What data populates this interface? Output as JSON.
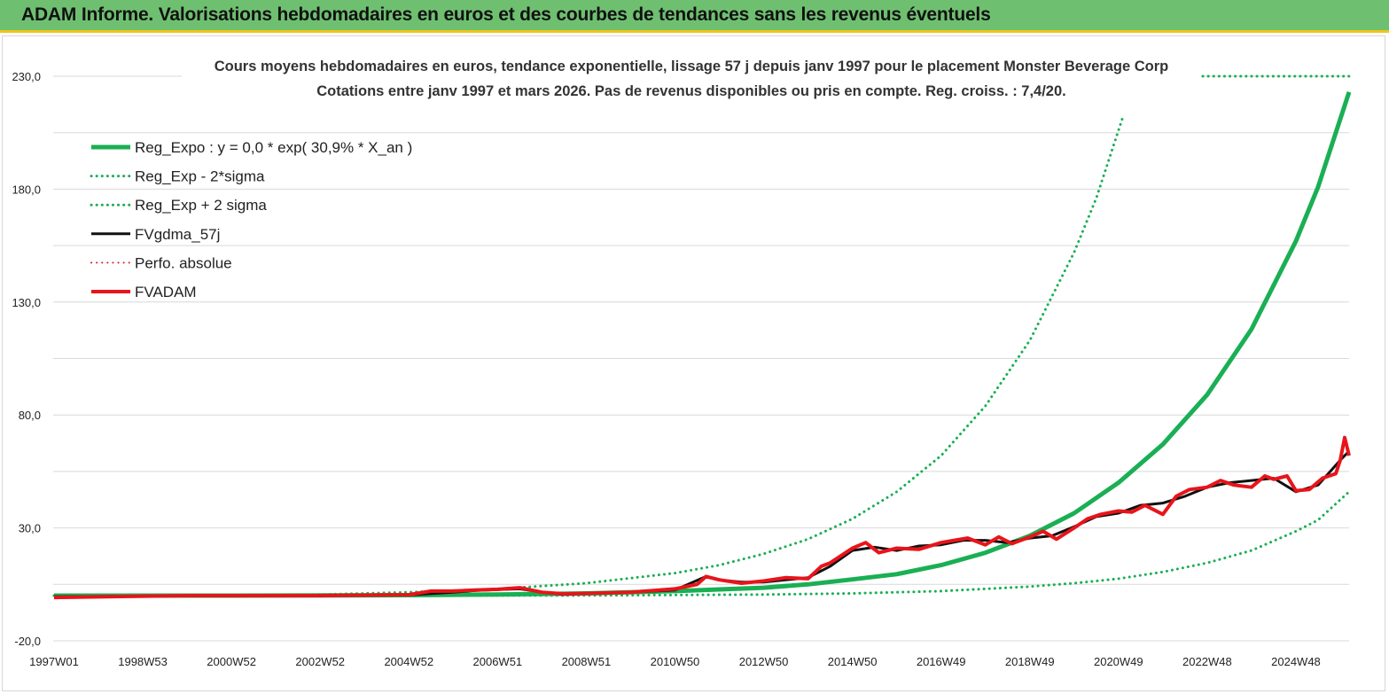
{
  "header": {
    "title": "ADAM Informe. Valorisations hebdomadaires en euros et des courbes de tendances sans les revenus éventuels"
  },
  "colors": {
    "header_bg": "#6ec070",
    "header_border": "#f0c419",
    "reg_green": "#1aaf54",
    "fvgdma_black": "#111111",
    "fvadam_red": "#e8141a",
    "grid": "#d9d9d9"
  },
  "chart_data": {
    "type": "line",
    "title_line1": "Cours moyens hebdomadaires en euros, tendance exponentielle, lissage 57 j depuis janv 1997 pour le placement Monster Beverage Corp",
    "title_line2": "Cotations entre janv 1997 et mars 2026. Pas de revenus disponibles ou pris en compte. Reg. croiss. : 7,4/20.",
    "ylim": [
      -20,
      230
    ],
    "grid": "horizontal",
    "legend_position": "top-left",
    "y_ticks": [
      "230,0",
      "180,0",
      "130,0",
      "80,0",
      "30,0",
      "-20,0"
    ],
    "y_tick_values": [
      230,
      180,
      130,
      80,
      30,
      -20
    ],
    "x_tick_labels": [
      "1997W01",
      "1998W53",
      "2000W52",
      "2002W52",
      "2004W52",
      "2006W51",
      "2008W51",
      "2010W50",
      "2012W50",
      "2014W50",
      "2016W49",
      "2018W49",
      "2020W49",
      "2022W48",
      "2024W48"
    ],
    "x_tick_years": [
      1997.0,
      1999.0,
      2001.0,
      2003.0,
      2005.0,
      2007.0,
      2009.0,
      2011.0,
      2013.0,
      2015.0,
      2017.0,
      2019.0,
      2021.0,
      2023.0,
      2025.0
    ],
    "x_range_years": [
      1996.98,
      2026.2
    ],
    "legend": [
      {
        "label": "Reg_Expo : y = 0,0 * exp( 30,9% *  X_an )",
        "style": "solid",
        "color": "#1aaf54",
        "width": 5
      },
      {
        "label": "Reg_Exp - 2*sigma",
        "style": "dotted",
        "color": "#1aaf54",
        "width": 3
      },
      {
        "label": "Reg_Exp + 2 sigma",
        "style": "dotted",
        "color": "#1aaf54",
        "width": 3
      },
      {
        "label": "FVgdma_57j",
        "style": "solid",
        "color": "#111111",
        "width": 3
      },
      {
        "label": "Perfo. absolue",
        "style": "dotted",
        "color": "#e8141a",
        "width": 2
      },
      {
        "label": "FVADAM",
        "style": "solid",
        "color": "#e8141a",
        "width": 4
      }
    ],
    "series": [
      {
        "name": "Reg_Expo : y = 0,0 * exp( 30,9% *  X_an )",
        "x": [
          1997.0,
          2001.0,
          2005.0,
          2007.0,
          2009.0,
          2011.0,
          2013.0,
          2014.0,
          2015.0,
          2016.0,
          2017.0,
          2018.0,
          2019.0,
          2020.0,
          2021.0,
          2022.0,
          2023.0,
          2024.0,
          2025.0,
          2025.5,
          2026.2
        ],
        "values": [
          0.0,
          0.0,
          0.2,
          0.5,
          1.0,
          2.0,
          3.5,
          5.0,
          7.2,
          9.5,
          13.5,
          19.0,
          26.5,
          36.5,
          50.0,
          67.0,
          89.0,
          118.0,
          157.0,
          181.0,
          223.0
        ]
      },
      {
        "name": "Reg_Exp - 2*sigma",
        "x": [
          1997.0,
          2005.0,
          2009.0,
          2013.0,
          2015.0,
          2017.0,
          2019.0,
          2020.0,
          2021.0,
          2022.0,
          2023.0,
          2024.0,
          2025.0,
          2025.5,
          2026.2
        ],
        "values": [
          0.0,
          0.0,
          0.1,
          0.5,
          1.0,
          2.0,
          4.0,
          5.5,
          7.5,
          10.5,
          14.5,
          20.0,
          28.5,
          33.5,
          46.0
        ]
      },
      {
        "name": "Reg_Exp + 2 sigma",
        "x": [
          1997.0,
          2003.0,
          2005.0,
          2007.0,
          2009.0,
          2011.0,
          2012.0,
          2013.0,
          2014.0,
          2015.0,
          2016.0,
          2017.0,
          2018.0,
          2019.0,
          2020.0,
          2020.5,
          2021.1
        ],
        "values": [
          0.0,
          0.5,
          1.5,
          3.0,
          5.5,
          10.0,
          13.5,
          18.5,
          25.0,
          34.0,
          46.0,
          62.0,
          84.0,
          113.0,
          152.0,
          176.0,
          212.0
        ]
      },
      {
        "name": "FVgdma_57j",
        "x": [
          1997.0,
          2000.0,
          2003.0,
          2005.0,
          2006.0,
          2006.5,
          2007.0,
          2007.5,
          2008.0,
          2008.5,
          2009.0,
          2010.0,
          2011.0,
          2011.7,
          2012.0,
          2012.5,
          2013.0,
          2014.0,
          2014.5,
          2015.0,
          2015.5,
          2016.0,
          2016.5,
          2017.0,
          2017.5,
          2018.0,
          2018.5,
          2019.0,
          2019.5,
          2020.0,
          2020.5,
          2021.0,
          2021.5,
          2022.0,
          2022.5,
          2023.0,
          2023.5,
          2024.0,
          2024.5,
          2025.0,
          2025.5,
          2026.0,
          2026.2
        ],
        "values": [
          -0.5,
          0.0,
          0.0,
          0.3,
          1.5,
          2.3,
          2.7,
          3.0,
          1.5,
          0.5,
          1.0,
          1.5,
          2.5,
          8.5,
          7.0,
          6.0,
          6.0,
          8.0,
          13.0,
          20.0,
          21.5,
          20.0,
          22.0,
          22.5,
          24.5,
          24.5,
          23.5,
          25.5,
          26.5,
          30.5,
          35.0,
          36.5,
          40.0,
          41.0,
          44.0,
          48.0,
          50.0,
          51.0,
          52.0,
          46.0,
          49.0,
          60.0,
          64.0
        ]
      },
      {
        "name": "FVADAM",
        "x": [
          1997.0,
          2000.0,
          2003.0,
          2005.0,
          2005.5,
          2006.0,
          2006.5,
          2007.0,
          2007.5,
          2008.0,
          2008.5,
          2009.0,
          2010.0,
          2011.0,
          2011.5,
          2011.7,
          2012.0,
          2012.5,
          2013.0,
          2013.5,
          2014.0,
          2014.3,
          2014.5,
          2015.0,
          2015.3,
          2015.6,
          2016.0,
          2016.5,
          2017.0,
          2017.3,
          2017.6,
          2018.0,
          2018.3,
          2018.6,
          2019.0,
          2019.3,
          2019.6,
          2020.0,
          2020.3,
          2020.6,
          2021.0,
          2021.3,
          2021.6,
          2022.0,
          2022.3,
          2022.6,
          2023.0,
          2023.3,
          2023.6,
          2024.0,
          2024.3,
          2024.5,
          2024.8,
          2025.0,
          2025.3,
          2025.6,
          2025.9,
          2026.0,
          2026.1,
          2026.2
        ],
        "values": [
          -0.8,
          0.0,
          0.0,
          0.4,
          2.0,
          2.0,
          2.5,
          2.8,
          3.5,
          1.5,
          0.8,
          1.0,
          1.5,
          3.0,
          5.0,
          8.5,
          7.0,
          5.5,
          6.5,
          8.0,
          7.5,
          13.0,
          14.5,
          21.0,
          23.5,
          19.0,
          21.0,
          20.5,
          23.5,
          24.5,
          25.5,
          22.5,
          26.0,
          23.0,
          26.0,
          28.5,
          25.0,
          30.0,
          34.0,
          36.0,
          37.5,
          37.0,
          40.0,
          36.0,
          44.0,
          47.0,
          48.0,
          51.0,
          49.0,
          48.0,
          53.0,
          51.5,
          53.0,
          46.5,
          47.0,
          52.0,
          54.0,
          60.0,
          70.0,
          62.0
        ]
      }
    ]
  }
}
